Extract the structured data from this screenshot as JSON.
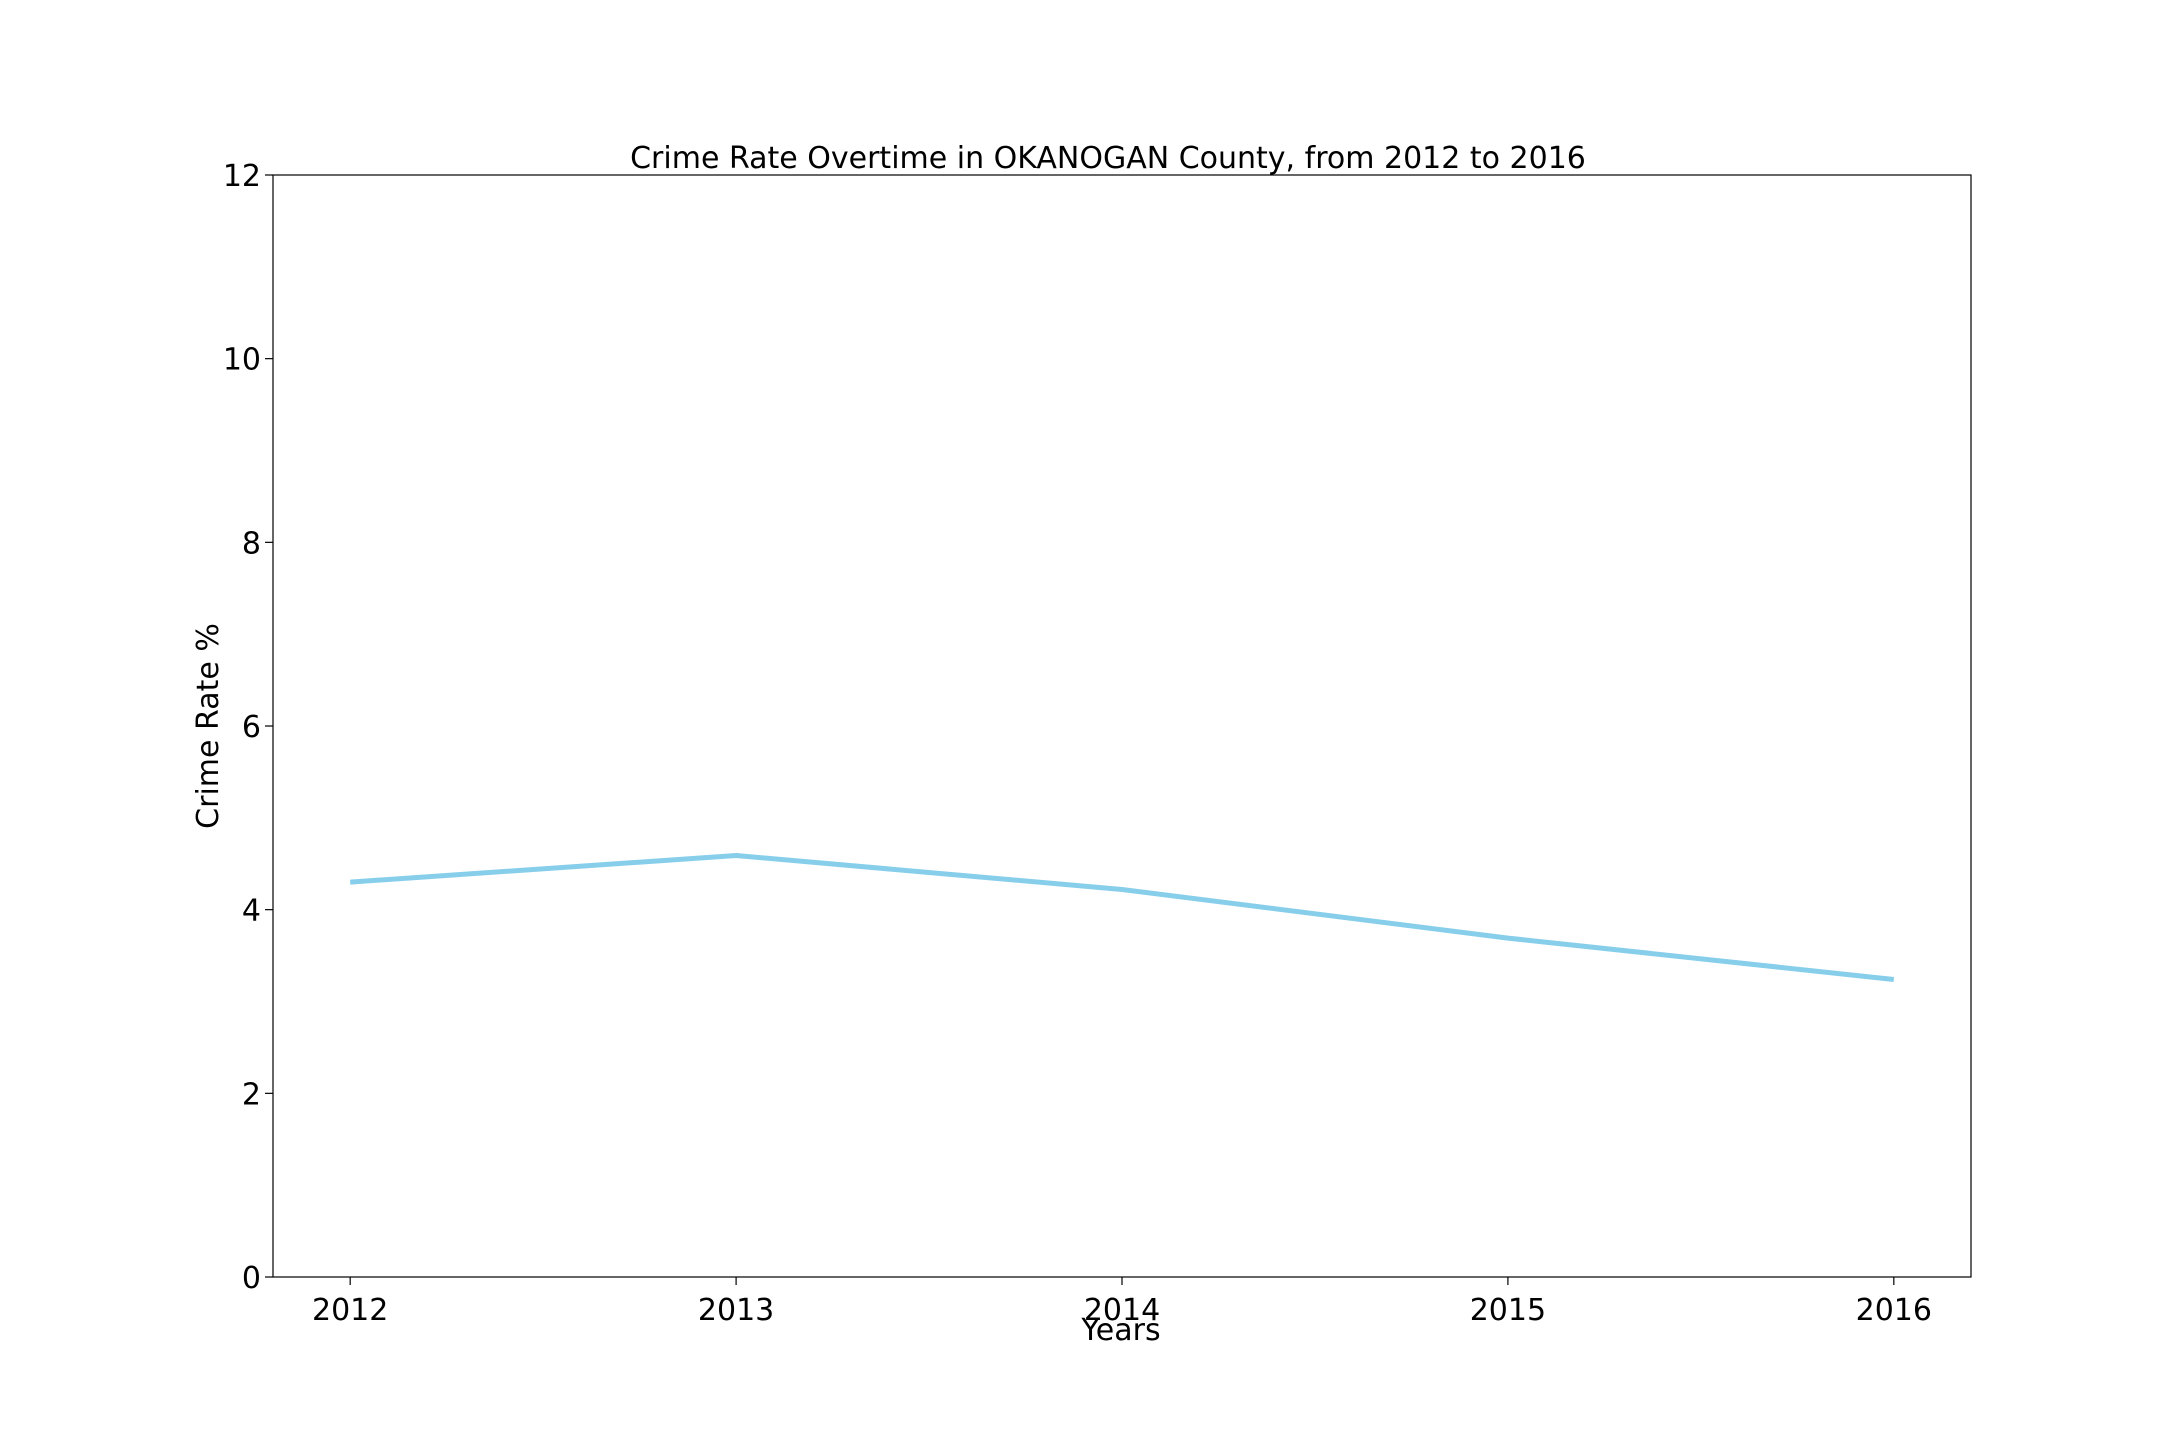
{
  "chart_data": {
    "type": "line",
    "title": "Crime Rate Overtime in OKANOGAN County, from 2012 to 2016",
    "xlabel": "Years",
    "ylabel": "Crime Rate %",
    "x": [
      2012,
      2013,
      2014,
      2015,
      2016
    ],
    "x_tick_labels": [
      "2012",
      "2013",
      "2014",
      "2015",
      "2016"
    ],
    "series": [
      {
        "values": [
          4.3,
          4.59,
          4.22,
          3.69,
          3.24
        ],
        "color": "#87ceeb"
      }
    ],
    "ylim": [
      0,
      12
    ],
    "xlim": [
      2011.8,
      2016.2
    ],
    "y_ticks": [
      0,
      2,
      4,
      6,
      8,
      10,
      12
    ],
    "y_tick_labels": [
      "0",
      "2",
      "4",
      "6",
      "8",
      "10",
      "12"
    ],
    "grid": false,
    "legend": "none"
  }
}
